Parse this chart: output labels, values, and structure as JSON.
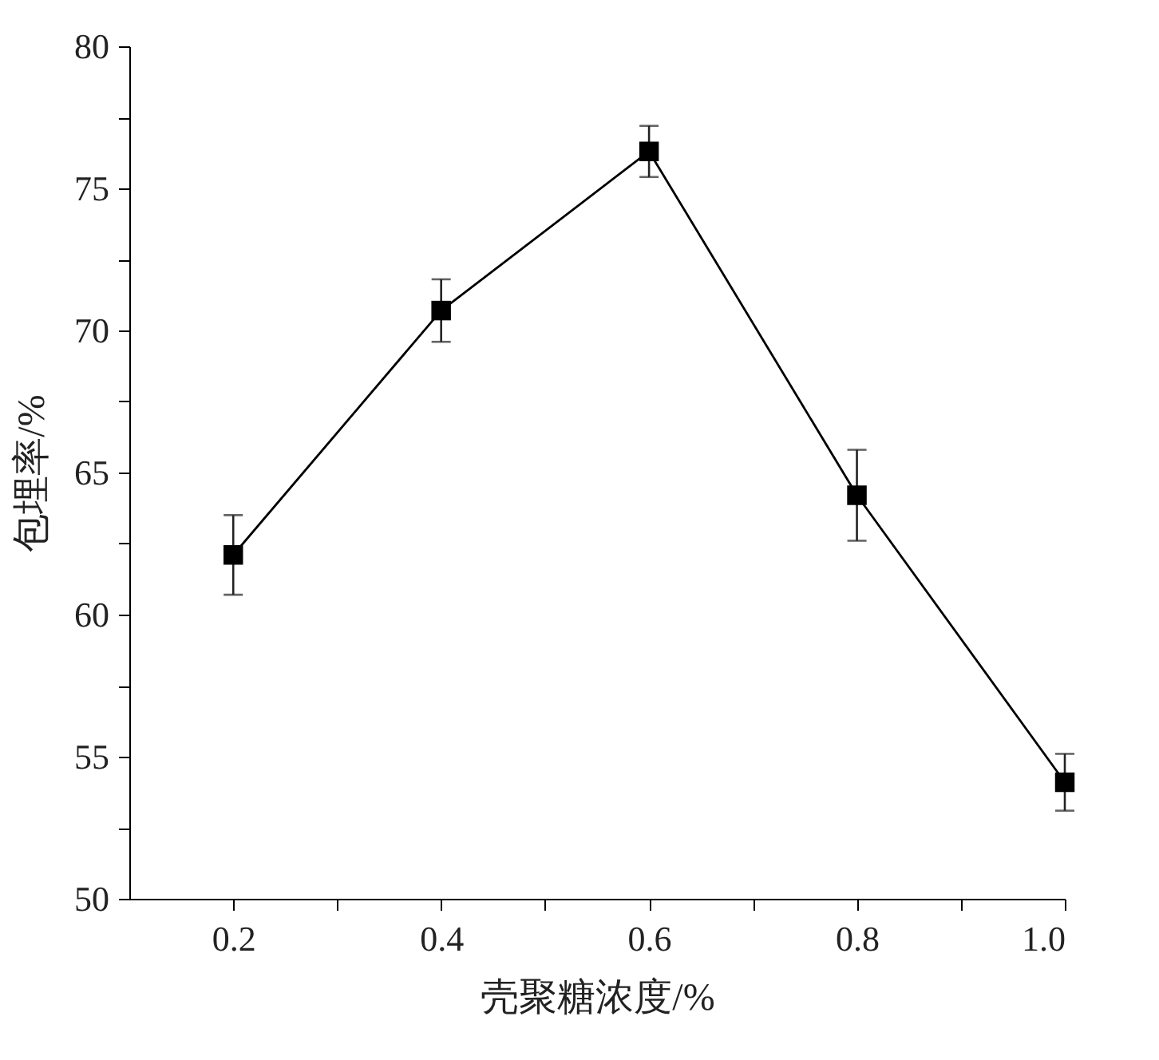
{
  "chart_data": {
    "type": "line",
    "xlabel": "壳聚糖浓度/%",
    "ylabel": "包埋率/%",
    "x": [
      0.2,
      0.4,
      0.6,
      0.8,
      1.0
    ],
    "series": [
      {
        "color": "#000000",
        "values": [
          62.1,
          70.7,
          76.3,
          64.2,
          54.1
        ],
        "errors": [
          1.4,
          1.1,
          0.9,
          1.6,
          1.0
        ]
      }
    ],
    "xlim": [
      0.1,
      1.0
    ],
    "xticks": [
      0.2,
      {
        "value": 0.3,
        "label": null
      },
      0.4,
      {
        "value": 0.5,
        "label": null
      },
      0.6,
      {
        "value": 0.7,
        "label": null
      },
      0.8,
      {
        "value": 0.9,
        "label": null
      },
      {
        "value": 1.0,
        "label": "1.0"
      }
    ],
    "ylim": [
      50,
      80
    ],
    "yticks": [
      50,
      {
        "value": 52.5,
        "label": null
      },
      55,
      {
        "value": 57.5,
        "label": null
      },
      60,
      {
        "value": 62.5,
        "label": null
      },
      65,
      {
        "value": 67.5,
        "label": null
      },
      70,
      {
        "value": 72.5,
        "label": null
      },
      75,
      {
        "value": 77.5,
        "label": null
      },
      80
    ],
    "marker": "square",
    "line_style": "solid"
  }
}
